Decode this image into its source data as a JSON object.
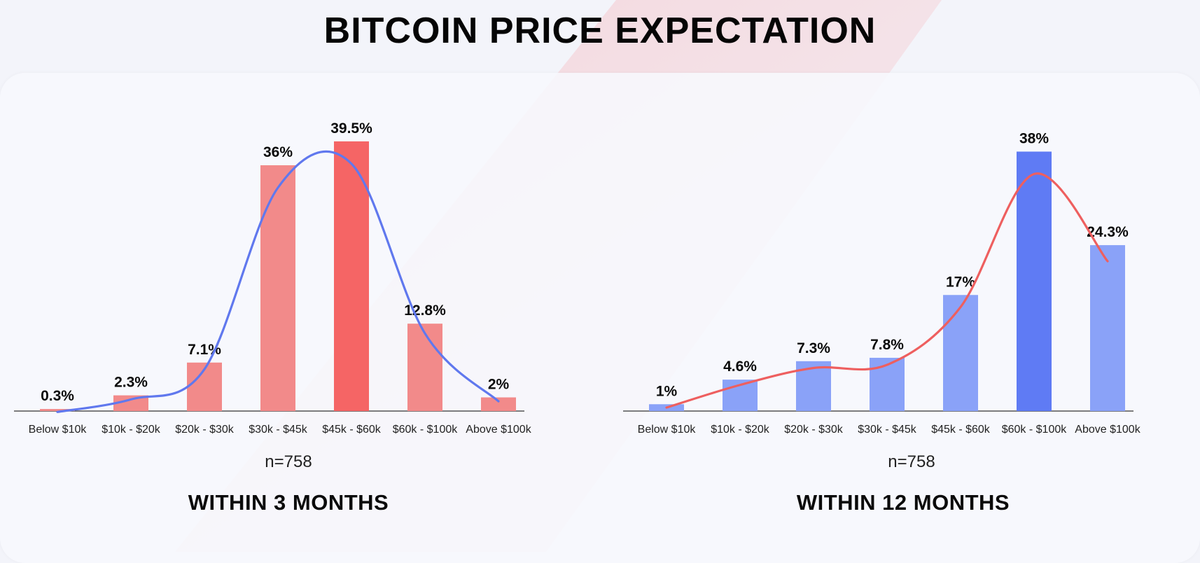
{
  "title": "BITCOIN PRICE EXPECTATION",
  "colors": {
    "bar_red": "#f28a8a",
    "bar_red_highlight": "#f56565",
    "bar_blue": "#8aa2f8",
    "bar_blue_highlight": "#5f7bf4",
    "curve_blue": "#6078ee",
    "curve_red": "#ee5f5f",
    "axis": "#333333"
  },
  "chart_data": [
    {
      "type": "bar",
      "title": "WITHIN 3 MONTHS",
      "note": "n=758",
      "categories": [
        "Below $10k",
        "$10k - $20k",
        "$20k - $30k",
        "$30k - $45k",
        "$45k - $60k",
        "$60k - $100k",
        "Above $100k"
      ],
      "values": [
        0.3,
        2.3,
        7.1,
        36,
        39.5,
        12.8,
        2
      ],
      "value_labels": [
        "0.3%",
        "2.3%",
        "7.1%",
        "36%",
        "39.5%",
        "12.8%",
        "2%"
      ],
      "highlight_index": 4,
      "bar_color": "#f28a8a",
      "highlight_color": "#f56565",
      "curve_color": "#6078ee",
      "ylim": [
        0,
        40
      ],
      "grid": false,
      "legend": "none",
      "xlabel": "",
      "ylabel": ""
    },
    {
      "type": "bar",
      "title": "WITHIN 12 MONTHS",
      "note": "n=758",
      "categories": [
        "Below $10k",
        "$10k - $20k",
        "$20k - $30k",
        "$30k - $45k",
        "$45k - $60k",
        "$60k - $100k",
        "Above $100k"
      ],
      "values": [
        1,
        4.6,
        7.3,
        7.8,
        17,
        38,
        24.3
      ],
      "value_labels": [
        "1%",
        "4.6%",
        "7.3%",
        "7.8%",
        "17%",
        "38%",
        "24.3%"
      ],
      "highlight_index": 5,
      "bar_color": "#8aa2f8",
      "highlight_color": "#5f7bf4",
      "curve_color": "#ee5f5f",
      "ylim": [
        0,
        40
      ],
      "grid": false,
      "legend": "none",
      "xlabel": "",
      "ylabel": ""
    }
  ]
}
